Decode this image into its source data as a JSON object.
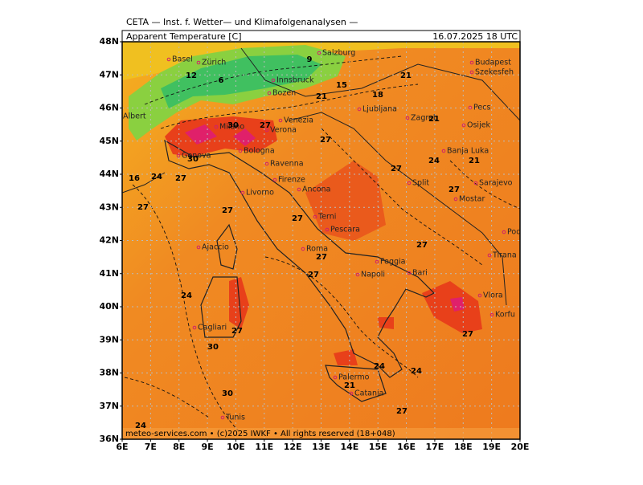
{
  "header": {
    "title": "CETA — Inst. f. Wetter— und Klimafolgenanalysen —",
    "field": "Apparent Temperature [C]",
    "valid": "16.07.2025 18 UTC",
    "footer": "meteo-services.com • (c)2025 IWKF • All rights reserved (18+048)"
  },
  "axes": {
    "lat_labels": [
      "36N",
      "37N",
      "38N",
      "39N",
      "40N",
      "41N",
      "42N",
      "43N",
      "44N",
      "45N",
      "46N",
      "47N",
      "48N"
    ],
    "lon_labels": [
      "6E",
      "7E",
      "8E",
      "9E",
      "10E",
      "11E",
      "12E",
      "13E",
      "14E",
      "15E",
      "16E",
      "17E",
      "18E",
      "19E",
      "20E"
    ]
  },
  "cities": [
    "Basel",
    "Zürich",
    "Salzburg",
    "Innsbruck",
    "Bozen",
    "Budapest",
    "Szekesfeh",
    "Albert",
    "Milano",
    "Venezia",
    "Verona",
    "Ljubljana",
    "Zagreb",
    "Pecs",
    "Osijek",
    "Banja Luka",
    "Genova",
    "Bologna",
    "Ravenna",
    "Firenze",
    "Livorno",
    "Ancona",
    "Split",
    "Sarajevo",
    "Mostar",
    "Podgorica",
    "Terni",
    "Pescara",
    "Ajaccio",
    "Roma",
    "Foggia",
    "Bari",
    "Napoli",
    "Tirana",
    "Vlora",
    "Korfu",
    "Cagliari",
    "Palermo",
    "Catania",
    "Tunis"
  ],
  "contour_labels": [
    "12",
    "9",
    "6",
    "15",
    "18",
    "21",
    "21",
    "30",
    "27",
    "27",
    "30",
    "27",
    "24",
    "27",
    "16",
    "27",
    "27",
    "27",
    "27",
    "27",
    "24",
    "27",
    "27",
    "30",
    "30",
    "24",
    "24",
    "21",
    "27",
    "27",
    "27",
    "24",
    "21",
    "21",
    "24"
  ]
}
